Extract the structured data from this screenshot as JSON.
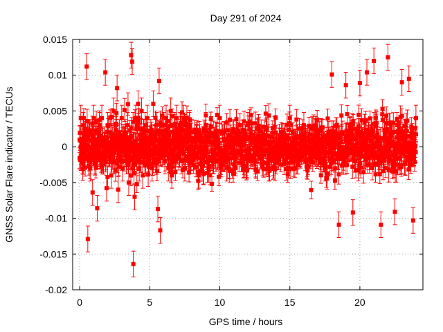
{
  "chart_data": {
    "type": "scatter",
    "title": "Day 291 of 2024",
    "xlabel": "GPS time / hours",
    "ylabel": "GNSS Solar Flare indicator / TECUs",
    "xlim": [
      -0.5,
      24.5
    ],
    "ylim": [
      -0.02,
      0.015
    ],
    "xticks": [
      0,
      5,
      10,
      15,
      20
    ],
    "yticks": [
      -0.02,
      -0.015,
      -0.01,
      -0.005,
      0,
      0.005,
      0.01,
      0.015
    ],
    "ytick_labels": [
      "-0.02",
      "-0.015",
      "-0.01",
      "-0.005",
      "0",
      "0.005",
      "0.01",
      "0.015"
    ],
    "xtick_labels": [
      "0",
      "5",
      "10",
      "15",
      "20"
    ],
    "grid": true,
    "series_color": "#ff0000",
    "marker": "square-with-errorbars",
    "error_bar_typical": 0.0012,
    "series": [
      {
        "x": [
          0.0,
          0.08,
          0.17,
          0.25,
          0.33,
          0.42,
          0.5,
          0.58,
          0.67,
          0.75,
          0.83,
          0.92,
          1.0,
          1.08,
          1.17,
          1.25,
          1.33,
          1.42,
          1.5,
          1.58,
          1.67,
          1.75,
          1.83,
          1.92,
          2.0,
          2.08,
          2.17,
          2.25,
          2.33,
          2.42,
          2.5,
          2.58,
          2.67,
          2.75,
          2.83,
          2.92,
          3.0,
          3.08,
          3.17,
          3.25,
          3.33,
          3.42,
          3.5,
          3.58,
          3.67,
          3.75,
          3.83,
          3.92,
          4.0,
          4.08,
          4.17,
          4.25,
          4.33,
          4.42,
          4.5,
          4.58,
          4.67,
          4.75,
          4.83,
          4.92,
          5.0,
          5.08,
          5.17,
          5.25,
          5.33,
          5.42,
          5.5,
          5.58,
          5.67,
          5.75,
          5.83,
          5.92,
          6.0,
          6.08,
          6.17,
          6.25,
          6.33,
          6.42,
          6.5,
          6.58,
          6.67,
          6.75,
          6.83,
          6.92,
          7.0,
          7.08,
          7.17,
          7.25,
          7.33,
          7.42,
          7.5,
          7.58,
          7.67,
          7.75,
          7.83,
          7.92,
          8.0,
          8.5,
          9.0,
          9.5,
          10.0,
          10.5,
          11.0,
          11.5,
          12.0,
          12.5,
          13.0,
          13.5,
          14.0,
          14.5,
          15.0,
          15.5,
          16.0,
          16.5,
          17.0,
          17.5,
          18.0,
          18.5,
          19.0,
          19.5,
          20.0,
          20.5,
          21.0,
          21.5,
          22.0,
          22.5,
          23.0,
          23.5,
          23.8,
          24.0
        ],
        "y": [
          0.001,
          0.004,
          -0.002,
          0.003,
          -0.001,
          0.002,
          0.0112,
          -0.0129,
          0.002,
          -0.003,
          0.001,
          -0.0064,
          0.004,
          -0.002,
          0.001,
          -0.0086,
          0.002,
          0.003,
          -0.001,
          0.004,
          -0.002,
          0.001,
          0.0104,
          -0.0058,
          0.003,
          -0.001,
          0.002,
          -0.004,
          0.001,
          0.005,
          -0.002,
          0.003,
          0.0082,
          -0.006,
          0.002,
          -0.001,
          0.004,
          -0.003,
          0.001,
          0.002,
          -0.002,
          0.003,
          -0.005,
          0.001,
          0.0128,
          0.0119,
          -0.0164,
          -0.007,
          0.004,
          -0.002,
          0.006,
          -0.003,
          0.001,
          0.005,
          -0.004,
          0.002,
          0.003,
          -0.001,
          0.004,
          -0.002,
          0.001,
          0.002,
          -0.003,
          0.006,
          -0.001,
          0.002,
          0.003,
          -0.0087,
          0.0092,
          -0.0117,
          0.002,
          -0.001,
          0.003,
          -0.002,
          0.004,
          0.001,
          -0.003,
          0.002,
          0.005,
          -0.004,
          0.001,
          0.003,
          -0.002,
          0.004,
          0.002,
          -0.001,
          0.003,
          -0.002,
          0.001,
          0.004,
          -0.003,
          0.002,
          0.001,
          -0.002,
          0.003,
          -0.001,
          0.002,
          -0.004,
          0.003,
          -0.002,
          0.004,
          -0.003,
          0.002,
          -0.001,
          0.003,
          -0.002,
          0.001,
          -0.003,
          0.002,
          -0.001,
          0.004,
          -0.002,
          0.003,
          -0.001,
          0.002,
          -0.003,
          0.0101,
          -0.0109,
          0.0086,
          -0.0092,
          0.0089,
          0.0104,
          0.012,
          -0.0109,
          0.0125,
          -0.0091,
          0.009,
          0.0095,
          -0.0103,
          0.004
        ]
      }
    ]
  }
}
